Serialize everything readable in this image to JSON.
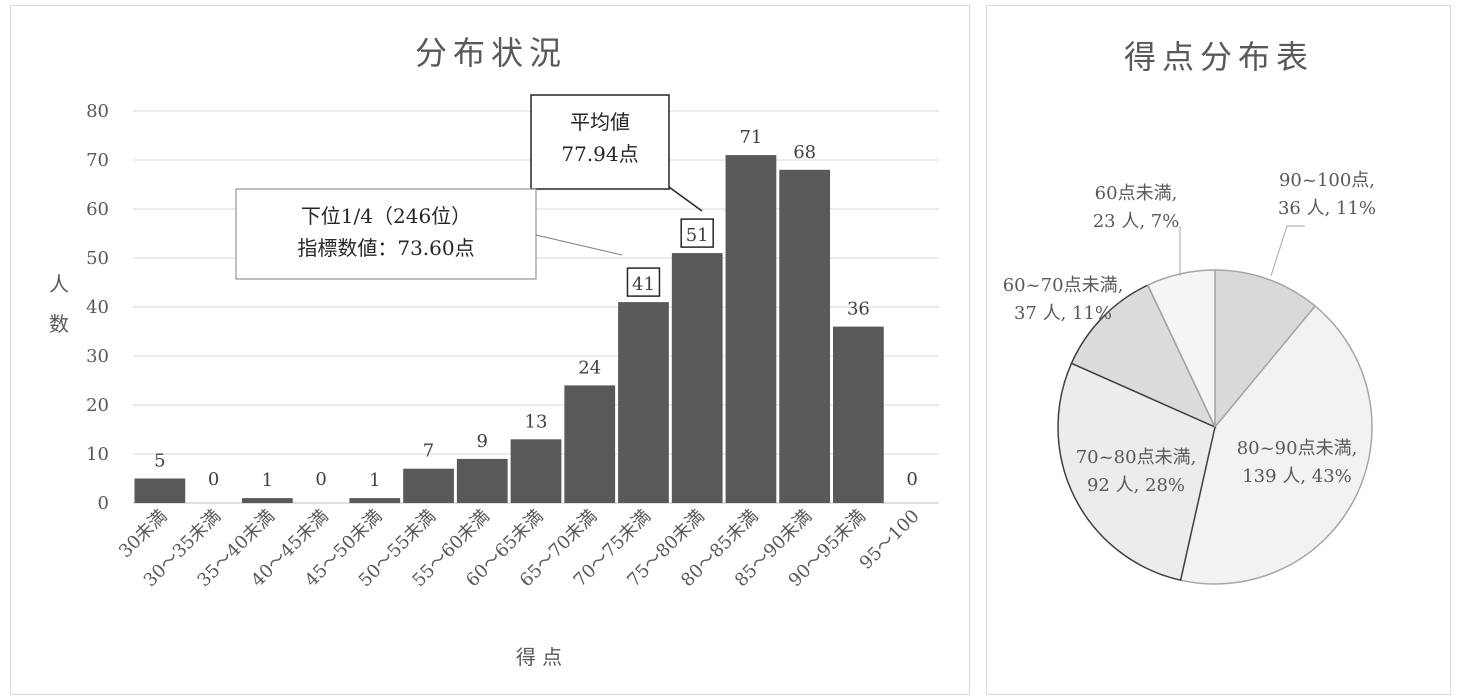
{
  "chart_data": [
    {
      "type": "bar",
      "title": "分布状況",
      "xlabel": "得 点",
      "ylabel": "人数",
      "ylim": [
        0,
        80
      ],
      "yticks": [
        0,
        10,
        20,
        30,
        40,
        50,
        60,
        70,
        80
      ],
      "grid": true,
      "categories": [
        "30未満",
        "30～35未満",
        "35～40未満",
        "40～45未満",
        "45～50未満",
        "50～55未満",
        "55～60未満",
        "60～65未満",
        "65～70未満",
        "70～75未満",
        "75～80未満",
        "80～85未満",
        "85～90未満",
        "90～95未満",
        "95～100"
      ],
      "values": [
        5,
        0,
        1,
        0,
        1,
        7,
        9,
        13,
        24,
        41,
        51,
        71,
        68,
        36,
        0
      ],
      "bar_color": "#595959",
      "annotations": [
        {
          "lines": [
            "平均値",
            "77.94点"
          ],
          "points_to": "75～80未満"
        },
        {
          "lines": [
            "下位1/4（246位）",
            "指標数値：73.60点"
          ],
          "points_to": "70～75未満"
        }
      ]
    },
    {
      "type": "pie",
      "title": "得点分布表",
      "slices": [
        {
          "name": "90~100点",
          "count": 36,
          "unit": "人",
          "percent": "11%",
          "label_line1": "90~100点,",
          "label_line2": "36 人, 11%",
          "color": "#d9d9d9"
        },
        {
          "name": "80~90点未満",
          "count": 139,
          "unit": "人",
          "percent": "43%",
          "label_line1": "80~90点未満,",
          "label_line2": "139 人, 43%",
          "color": "#f2f2f2"
        },
        {
          "name": "70~80点未満",
          "count": 92,
          "unit": "人",
          "percent": "28%",
          "label_line1": "70~80点未満,",
          "label_line2": "92 人, 28%",
          "color": "#ececec"
        },
        {
          "name": "60~70点未満",
          "count": 37,
          "unit": "人",
          "percent": "11%",
          "label_line1": "60~70点未満,",
          "label_line2": "37 人, 11%",
          "color": "#dcdcdc"
        },
        {
          "name": "60点未満",
          "count": 23,
          "unit": "人",
          "percent": "7%",
          "label_line1": "60点未満,",
          "label_line2": "23 人, 7%",
          "color": "#f5f5f5"
        }
      ]
    }
  ]
}
